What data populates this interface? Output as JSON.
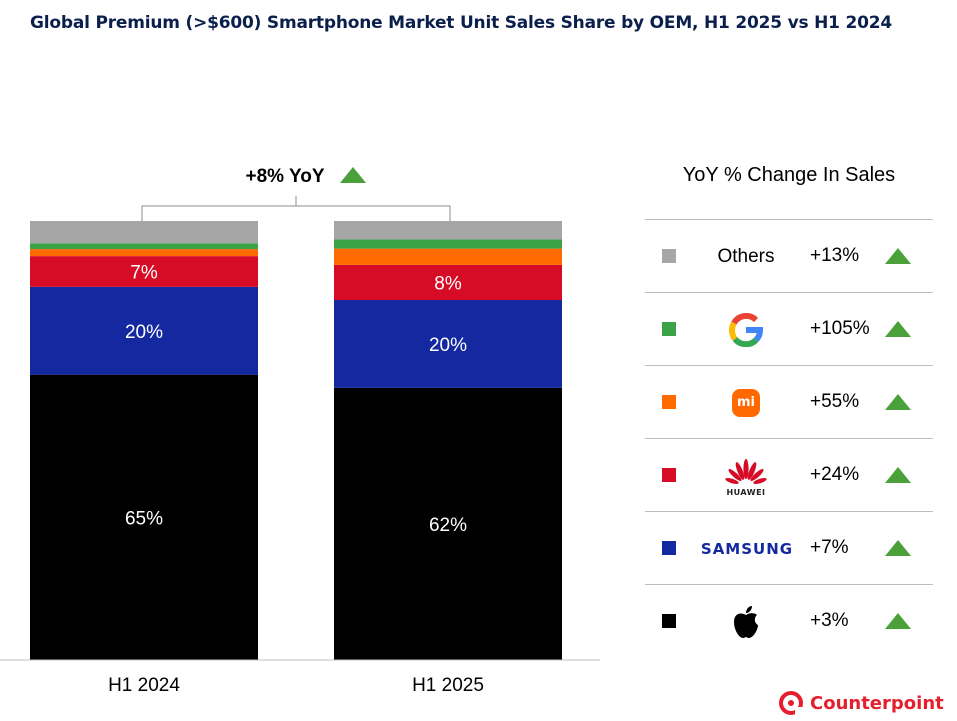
{
  "title": "Global Premium (>$600) Smartphone Market Unit Sales Share by OEM, H1 2025 vs H1 2024",
  "yoy_total": "+8% YoY",
  "legend_title": "YoY % Change In Sales",
  "colors": {
    "apple": "#000000",
    "samsung": "#1428a0",
    "huawei": "#d60c26",
    "xiaomi": "#ff6a00",
    "google": "#3aa346",
    "others": "#a6a6a6",
    "up_arrow": "#4aa13a"
  },
  "chart_data": {
    "type": "bar",
    "stacked": true,
    "normalized": true,
    "categories": [
      "H1 2024",
      "H1 2025"
    ],
    "series": [
      {
        "name": "Apple",
        "color": "#000000",
        "values": [
          65,
          62
        ],
        "labels": [
          "65%",
          "62%"
        ]
      },
      {
        "name": "Samsung",
        "color": "#1428a0",
        "values": [
          20,
          20
        ],
        "labels": [
          "20%",
          "20%"
        ]
      },
      {
        "name": "Huawei",
        "color": "#d60c26",
        "values": [
          7,
          8
        ],
        "labels": [
          "7%",
          "8%"
        ]
      },
      {
        "name": "Xiaomi",
        "color": "#ff6a00",
        "values": [
          1.6,
          3.7
        ],
        "labels": [
          "",
          ""
        ]
      },
      {
        "name": "Google",
        "color": "#3aa346",
        "values": [
          1.3,
          2.1
        ],
        "labels": [
          "",
          ""
        ]
      },
      {
        "name": "Others",
        "color": "#a6a6a6",
        "values": [
          5.1,
          4.2
        ],
        "labels": [
          "",
          ""
        ]
      }
    ],
    "ylim": [
      0,
      100
    ]
  },
  "legend": [
    {
      "name": "Others",
      "brand_text": "Others",
      "icon": "others-text",
      "change": "+13%",
      "color": "#a6a6a6"
    },
    {
      "name": "Google",
      "brand_text": "",
      "icon": "google-icon",
      "change": "+105%",
      "color": "#3aa346"
    },
    {
      "name": "Xiaomi",
      "brand_text": "mi",
      "icon": "xiaomi-icon",
      "change": "+55%",
      "color": "#ff6a00"
    },
    {
      "name": "Huawei",
      "brand_text": "HUAWEI",
      "icon": "huawei-icon",
      "change": "+24%",
      "color": "#d60c26"
    },
    {
      "name": "Samsung",
      "brand_text": "SAMSUNG",
      "icon": "samsung-icon",
      "change": "+7%",
      "color": "#1428a0"
    },
    {
      "name": "Apple",
      "brand_text": "",
      "icon": "apple-icon",
      "change": "+3%",
      "color": "#000000"
    }
  ],
  "footer_brand": "Counterpoint"
}
